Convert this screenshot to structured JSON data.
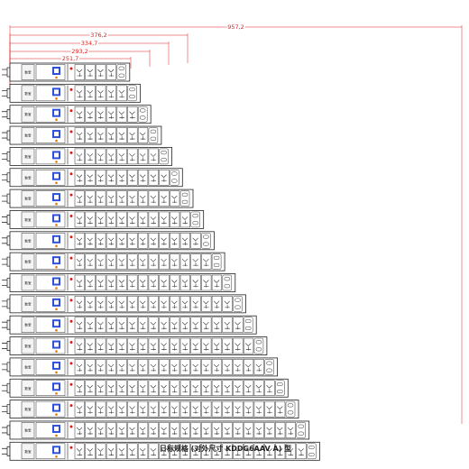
{
  "diagram": {
    "dimensions": [
      {
        "label": "957,2"
      },
      {
        "label": "376,2"
      },
      {
        "label": "334,7"
      },
      {
        "label": "293,2"
      },
      {
        "label": "251,7"
      }
    ],
    "strips": {
      "count": 19,
      "first_outlets": 4,
      "brand_label": "数宝"
    },
    "caption": "日标规格 (对外尺寸 KDDG6AAV A) 型"
  }
}
